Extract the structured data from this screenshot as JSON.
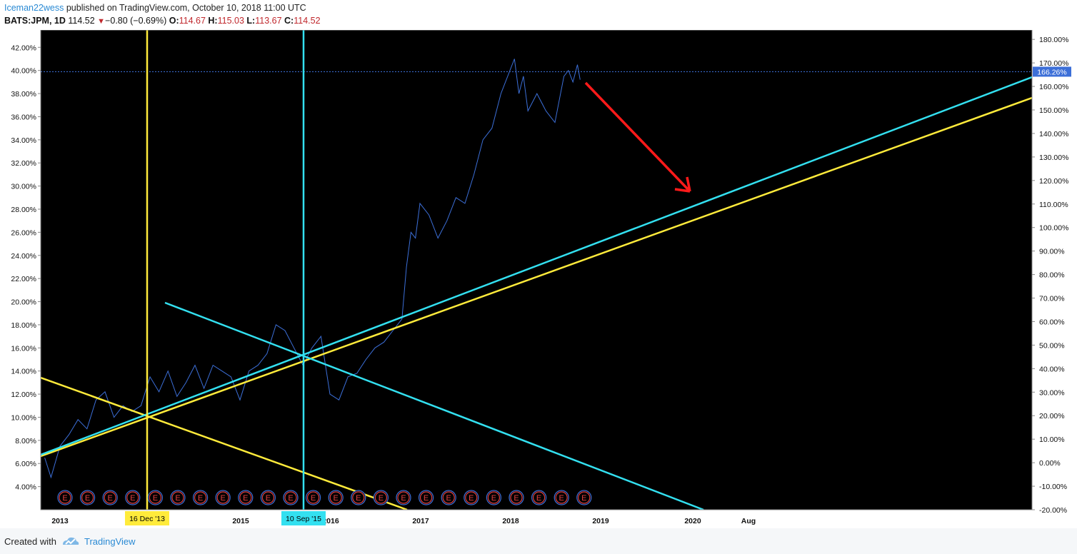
{
  "header": {
    "author": "Iceman22wess",
    "published_text": "published on TradingView.com, October 10, 2018 11:00 UTC",
    "symbol": "BATS:JPM, 1D",
    "last": "114.52",
    "change": "−0.80 (−0.69%)",
    "open_label": "O:",
    "open": "114.67",
    "high_label": "H:",
    "high": "115.03",
    "low_label": "L:",
    "low": "113.67",
    "close_label": "C:",
    "close": "114.52"
  },
  "footer": {
    "created_with": "Created with",
    "brand": "TradingView"
  },
  "colors": {
    "price_line": "#3c6fd8",
    "yellow": "#ffeb3b",
    "cyan": "#33e0f0",
    "red": "#ff1a1a",
    "earnings": "#e04040",
    "background": "#000000",
    "price_badge": "#3c6fd8"
  },
  "chart_data": {
    "type": "line",
    "x_ticks": [
      "2013",
      "2015",
      "2016",
      "2017",
      "2018",
      "2019",
      "2020",
      "Aug"
    ],
    "left_axis": {
      "range": [
        2.0,
        43.5
      ],
      "ticks": [
        "4.00%",
        "6.00%",
        "8.00%",
        "10.00%",
        "12.00%",
        "14.00%",
        "16.00%",
        "18.00%",
        "20.00%",
        "22.00%",
        "24.00%",
        "26.00%",
        "28.00%",
        "30.00%",
        "32.00%",
        "34.00%",
        "36.00%",
        "38.00%",
        "40.00%",
        "42.00%"
      ]
    },
    "right_axis": {
      "range": [
        -20.0,
        184.0
      ],
      "ticks": [
        "-20.00%",
        "-10.00%",
        "0.00%",
        "10.00%",
        "20.00%",
        "30.00%",
        "40.00%",
        "50.00%",
        "60.00%",
        "70.00%",
        "80.00%",
        "90.00%",
        "100.00%",
        "110.00%",
        "120.00%",
        "130.00%",
        "140.00%",
        "150.00%",
        "160.00%",
        "170.00%",
        "180.00%"
      ],
      "current_value": "166.26%"
    },
    "markers": [
      {
        "label": "16 Dec '13",
        "color": "#ffeb3b",
        "year": 2013.96
      },
      {
        "label": "10 Sep '15",
        "color": "#33e0f0",
        "year": 2015.69
      }
    ],
    "series": [
      {
        "x": [
          2012.83,
          2012.9,
          2013.0,
          2013.1,
          2013.2,
          2013.3,
          2013.4,
          2013.5,
          2013.6,
          2013.7,
          2013.8,
          2013.9,
          2014.0,
          2014.1,
          2014.2,
          2014.3,
          2014.4,
          2014.5,
          2014.6,
          2014.7,
          2014.8,
          2014.9,
          2015.0,
          2015.1,
          2015.2,
          2015.3,
          2015.4,
          2015.5,
          2015.6,
          2015.7,
          2015.8,
          2015.9,
          2016.0,
          2016.1,
          2016.2,
          2016.3,
          2016.4,
          2016.5,
          2016.6,
          2016.7,
          2016.8,
          2016.85,
          2016.9,
          2016.95,
          2017.0,
          2017.1,
          2017.2,
          2017.3,
          2017.4,
          2017.5,
          2017.6,
          2017.7,
          2017.8,
          2017.9,
          2018.0,
          2018.05,
          2018.1,
          2018.15,
          2018.2,
          2018.3,
          2018.4,
          2018.5,
          2018.6,
          2018.65,
          2018.7,
          2018.75,
          2018.78
        ],
        "values": [
          6.5,
          4.8,
          7.5,
          8.5,
          9.8,
          9.0,
          11.5,
          12.2,
          10.0,
          11.0,
          10.5,
          11.0,
          13.5,
          12.2,
          14.0,
          11.8,
          13.0,
          14.5,
          12.5,
          14.5,
          14.0,
          13.5,
          11.5,
          14.0,
          14.5,
          15.5,
          18.0,
          17.5,
          16.0,
          14.5,
          16.0,
          17.0,
          12.0,
          11.5,
          13.5,
          13.8,
          15.0,
          16.0,
          16.5,
          17.5,
          18.5,
          23.0,
          26.0,
          25.5,
          28.5,
          27.5,
          25.5,
          27.0,
          29.0,
          28.5,
          31.0,
          34.0,
          35.0,
          38.0,
          40.0,
          41.0,
          38.0,
          39.5,
          36.5,
          38.0,
          36.5,
          35.5,
          39.5,
          40.0,
          39.0,
          40.5,
          39.2
        ]
      }
    ],
    "earnings_markers": 24,
    "earnings_label": "E",
    "grid": false,
    "legend": "none"
  }
}
